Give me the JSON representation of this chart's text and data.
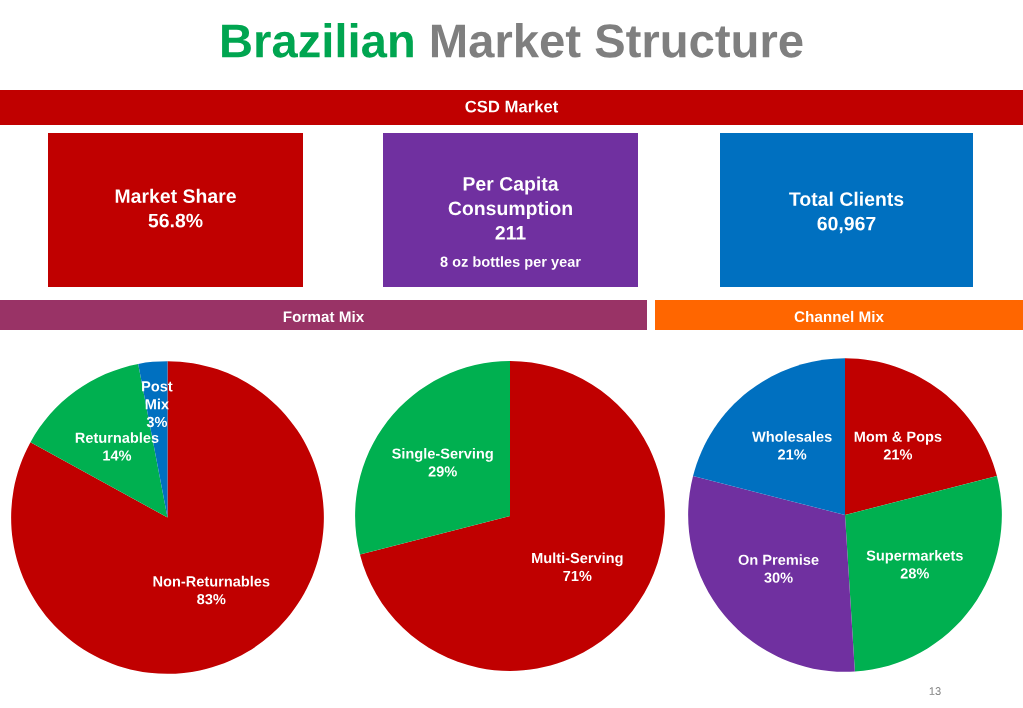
{
  "chart_data": [
    {
      "type": "other",
      "title": "Brazilian Market Structure",
      "subtitle": "CSD Market",
      "annotations": [
        "Market Share\n56.8%",
        "Per Capita\nConsumption\n211",
        "8 oz bottles per year",
        "Total Clients\n60,967",
        "13"
      ]
    },
    {
      "type": "pie",
      "title": "Format Mix",
      "categories": [
        "Non-Returnables",
        "Returnables",
        "Post Mix"
      ],
      "values": [
        83,
        14,
        3
      ],
      "colors": [
        "#c00000",
        "#00b050",
        "#0070c0"
      ],
      "value_labels": [
        "83%",
        "14%",
        "3%"
      ]
    },
    {
      "type": "pie",
      "categories": [
        "Multi-Serving",
        "Single-Serving"
      ],
      "values": [
        71,
        29
      ],
      "colors": [
        "#c00000",
        "#00b050"
      ],
      "value_labels": [
        "71%",
        "29%"
      ]
    },
    {
      "type": "pie",
      "title": "Channel Mix",
      "categories": [
        "Mom & Pops",
        "Supermarkets",
        "On Premise",
        "Wholesales"
      ],
      "values": [
        21,
        28,
        30,
        21
      ],
      "colors": [
        "#c00000",
        "#00b050",
        "#7030a0",
        "#0070c0"
      ],
      "value_labels": [
        "21%",
        "28%",
        "30%",
        "21%"
      ]
    }
  ]
}
